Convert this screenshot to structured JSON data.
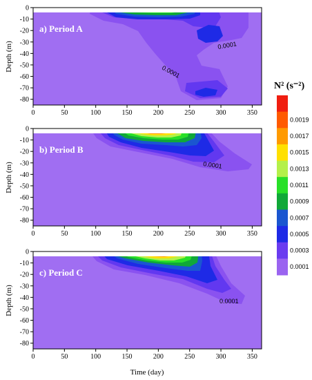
{
  "chart_data": [
    {
      "type": "contour",
      "panel_label": "a) Period A",
      "ylabel": "Depth (m)",
      "xlabel": "",
      "xlim": [
        0,
        365
      ],
      "ylim": [
        -85,
        0
      ],
      "xticks": [
        "0",
        "50",
        "100",
        "150",
        "200",
        "250",
        "300",
        "350"
      ],
      "yticks": [
        "0",
        "-10",
        "-20",
        "-30",
        "-40",
        "-50",
        "-60",
        "-70",
        "-80"
      ],
      "contour_labels": [
        {
          "text": "0.0001",
          "x": 320,
          "y": -33
        },
        {
          "text": "0.0001",
          "x": 235,
          "y": -56
        }
      ]
    },
    {
      "type": "contour",
      "panel_label": "b) Period B",
      "ylabel": "Depth (m)",
      "xlabel": "",
      "xlim": [
        0,
        365
      ],
      "ylim": [
        -85,
        0
      ],
      "xticks": [
        "0",
        "50",
        "100",
        "150",
        "200",
        "250",
        "300",
        "350"
      ],
      "yticks": [
        "0",
        "-10",
        "-20",
        "-30",
        "-40",
        "-50",
        "-60",
        "-70",
        "-80"
      ],
      "contour_labels": [
        {
          "text": "0.0001",
          "x": 300,
          "y": -33
        }
      ]
    },
    {
      "type": "contour",
      "panel_label": "c) Period C",
      "ylabel": "Depth (m)",
      "xlabel": "Time (day)",
      "xlim": [
        0,
        365
      ],
      "ylim": [
        -85,
        0
      ],
      "xticks": [
        "0",
        "50",
        "100",
        "150",
        "200",
        "250",
        "300",
        "350"
      ],
      "yticks": [
        "0",
        "-10",
        "-20",
        "-30",
        "-40",
        "-50",
        "-60",
        "-70",
        "-80"
      ],
      "contour_labels": [
        {
          "text": "0.0001",
          "x": 322,
          "y": -40
        }
      ]
    }
  ],
  "colorbar": {
    "title": "N² (s⁻²)",
    "levels": [
      {
        "value": "0.0001",
        "color": "#9a64f0"
      },
      {
        "value": "0.0003",
        "color": "#6a3cf0"
      },
      {
        "value": "0.0005",
        "color": "#1e2ae6"
      },
      {
        "value": "0.0007",
        "color": "#1a56d0"
      },
      {
        "value": "0.0009",
        "color": "#10a838"
      },
      {
        "value": "0.0011",
        "color": "#28e028"
      },
      {
        "value": "0.0013",
        "color": "#b4f04a"
      },
      {
        "value": "0.0015",
        "color": "#ffe000"
      },
      {
        "value": "0.0017",
        "color": "#ff9a00"
      },
      {
        "value": "0.0019",
        "color": "#ff5a00"
      },
      {
        "value": "",
        "color": "#f01e10"
      }
    ]
  },
  "colors": {
    "background": "#a06ef2",
    "level1": "#8a52f0",
    "level2": "#6238f0",
    "level3": "#1e2ae6",
    "level4": "#1a56d0",
    "level5": "#10a838",
    "level6": "#28e028",
    "level7": "#b4f04a",
    "level8": "#ffe000",
    "level9": "#ff9a00",
    "level10": "#ff5a00"
  }
}
